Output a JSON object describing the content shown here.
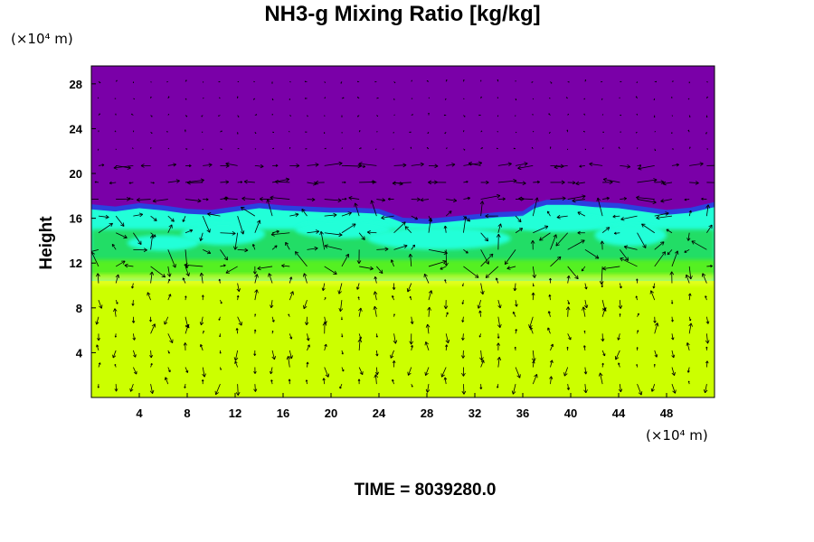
{
  "chart_data": {
    "type": "heatmap",
    "title": "NH3-g Mixing Ratio [kg/kg]",
    "xlabel": "",
    "ylabel": "Height",
    "x_unit": "(×10⁴ m)",
    "y_unit": "(×10⁴ m)",
    "xlim": [
      0,
      52
    ],
    "ylim": [
      0,
      29.6
    ],
    "x_ticks": [
      4,
      8,
      12,
      16,
      20,
      24,
      28,
      32,
      36,
      40,
      44,
      48
    ],
    "y_ticks": [
      4,
      8,
      12,
      16,
      20,
      24,
      28
    ],
    "grid": false,
    "overlay": "wind vector arrows",
    "regions": [
      {
        "name": "upper layer",
        "color": "#7a00a8",
        "y_from": 17,
        "y_to": 29.6
      },
      {
        "name": "mixing layer",
        "color": "#22dd66",
        "y_from": 11,
        "y_to": 17
      },
      {
        "name": "lower layer",
        "color": "#ccff00",
        "y_from": 0,
        "y_to": 10
      }
    ],
    "colors": {
      "purple": "#7a00a8",
      "blue": "#2a40e0",
      "cyan": "#22ffd8",
      "green": "#22dd66",
      "bright_green": "#55f020",
      "yellow_green": "#ccff00",
      "yellow": "#f0ff30"
    }
  },
  "footer": {
    "time_label": "TIME = 8039280.0"
  }
}
